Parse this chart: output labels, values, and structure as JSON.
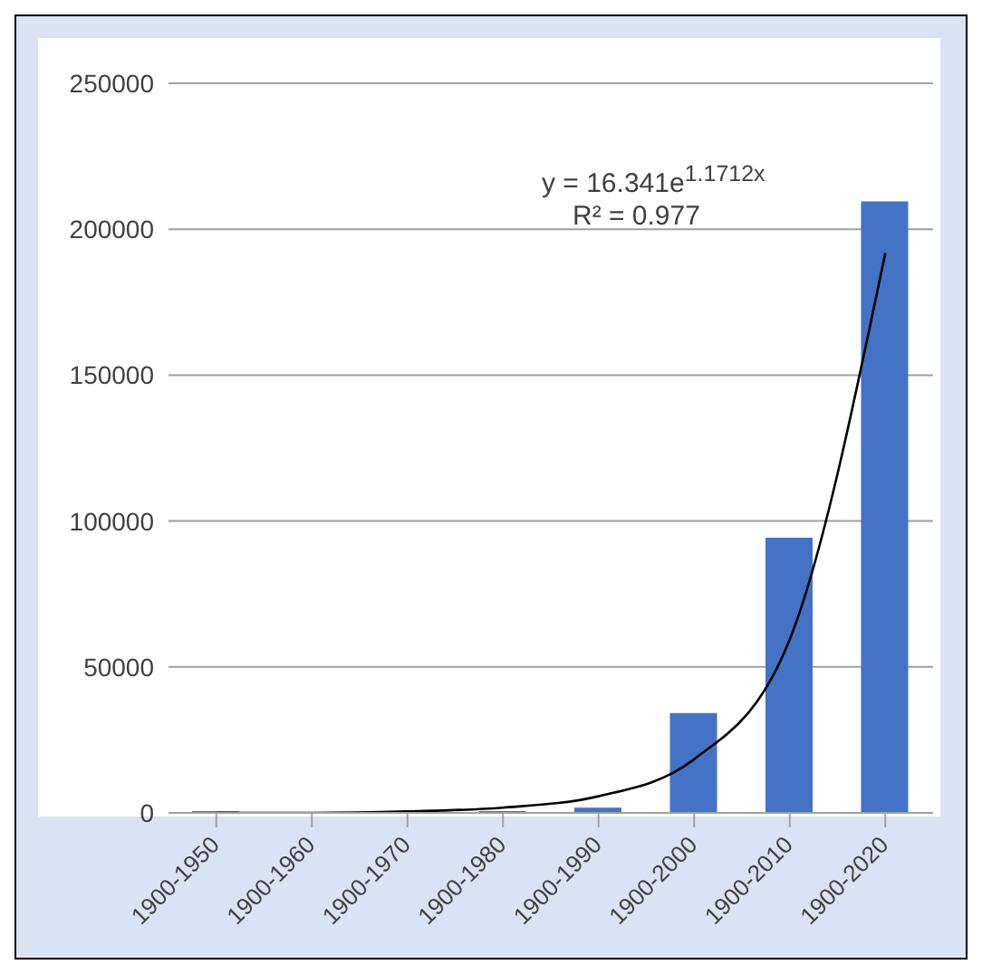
{
  "chart_data": {
    "type": "bar",
    "categories": [
      "1900-1950",
      "1900-1960",
      "1900-1970",
      "1900-1980",
      "1900-1990",
      "1900-2000",
      "1900-2010",
      "1900-2020"
    ],
    "series": [
      {
        "color": "#4472c4",
        "values": [
          600,
          300,
          300,
          600,
          1800,
          34200,
          94300,
          209500
        ]
      },
      {
        "type": "line",
        "color": "#000000",
        "marker": "none",
        "values": [
          0,
          0,
          500,
          1800,
          5700,
          18400,
          59400,
          191800
        ]
      }
    ],
    "ylim": [
      0,
      250000
    ],
    "yticks": [
      0,
      50000,
      100000,
      150000,
      200000,
      250000
    ],
    "grid": "y",
    "legend": false,
    "annotations": [
      "y = 16.341e$^{1.1712x}$",
      "R² = 0.977"
    ]
  }
}
